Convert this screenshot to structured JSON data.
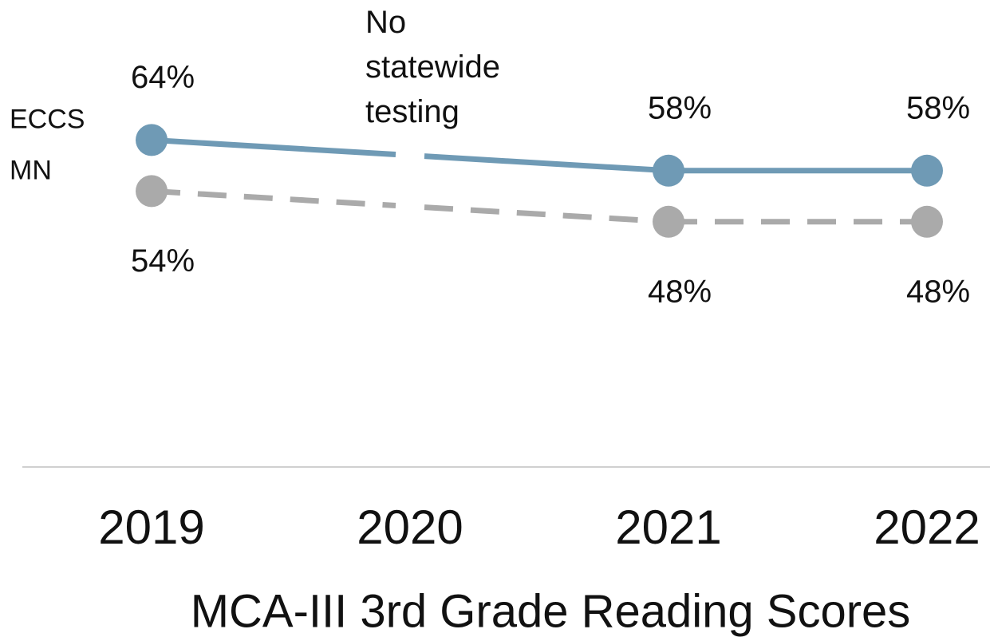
{
  "chart_data": {
    "type": "line",
    "title": "MCA-III 3rd Grade Reading Scores",
    "annotation": "No statewide testing",
    "categories": [
      "2019",
      "2020",
      "2021",
      "2022"
    ],
    "series": [
      {
        "name": "ECCS",
        "color": "#6f9ab5",
        "dashed": false,
        "label_position": "above",
        "values": [
          64,
          null,
          58,
          58
        ],
        "value_labels": [
          "64%",
          null,
          "58%",
          "58%"
        ]
      },
      {
        "name": "MN",
        "color": "#aaaaaa",
        "dashed": true,
        "label_position": "below",
        "values": [
          54,
          null,
          48,
          48
        ],
        "value_labels": [
          "54%",
          null,
          "48%",
          "48%"
        ]
      }
    ],
    "ylim": [
      0,
      100
    ]
  }
}
